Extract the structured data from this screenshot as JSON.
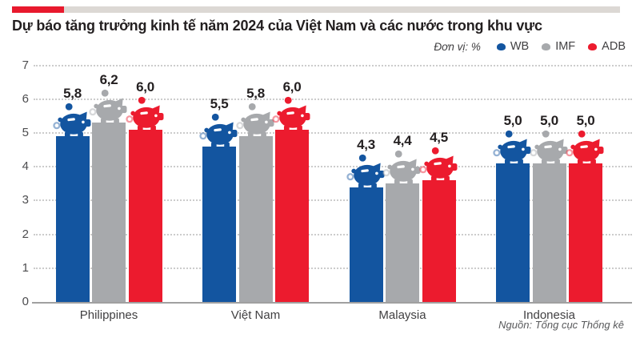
{
  "header": {
    "title": "Dự báo tăng trưởng kinh tế năm 2024 của Việt Nam và các nước trong khu vực",
    "unit_label": "Đơn vị: %"
  },
  "source": "Nguồn: Tổng cục Thống kê",
  "colors": {
    "accent_red": "#e8192d",
    "accent_gray": "#dcd8d4",
    "wb_blue": "#1355a0",
    "imf_gray": "#a7a9ac",
    "adb_red": "#ec1b2e"
  },
  "chart_data": {
    "type": "bar",
    "title": "Dự báo tăng trưởng kinh tế năm 2024 của Việt Nam và các nước trong khu vực",
    "categories": [
      "Philippines",
      "Việt Nam",
      "Malaysia",
      "Indonesia"
    ],
    "series": [
      {
        "name": "WB",
        "color": "#1355a0",
        "values": [
          5.8,
          5.5,
          4.3,
          5.0
        ]
      },
      {
        "name": "IMF",
        "color": "#a7a9ac",
        "values": [
          6.2,
          5.8,
          4.4,
          5.0
        ]
      },
      {
        "name": "ADB",
        "color": "#ec1b2e",
        "values": [
          6.0,
          6.0,
          4.5,
          5.0
        ]
      }
    ],
    "value_labels": [
      [
        "5,8",
        "5,5",
        "4,3",
        "5,0"
      ],
      [
        "6,2",
        "5,8",
        "4,4",
        "5,0"
      ],
      [
        "6,0",
        "6,0",
        "4,5",
        "5,0"
      ]
    ],
    "xlabel": "",
    "ylabel": "",
    "unit": "%",
    "y_ticks": [
      0,
      1,
      2,
      3,
      4,
      5,
      6,
      7
    ],
    "ylim": [
      0,
      7
    ],
    "grid": "dotted-horizontal",
    "legend_position": "top-right",
    "icon": "piggy-bank"
  }
}
